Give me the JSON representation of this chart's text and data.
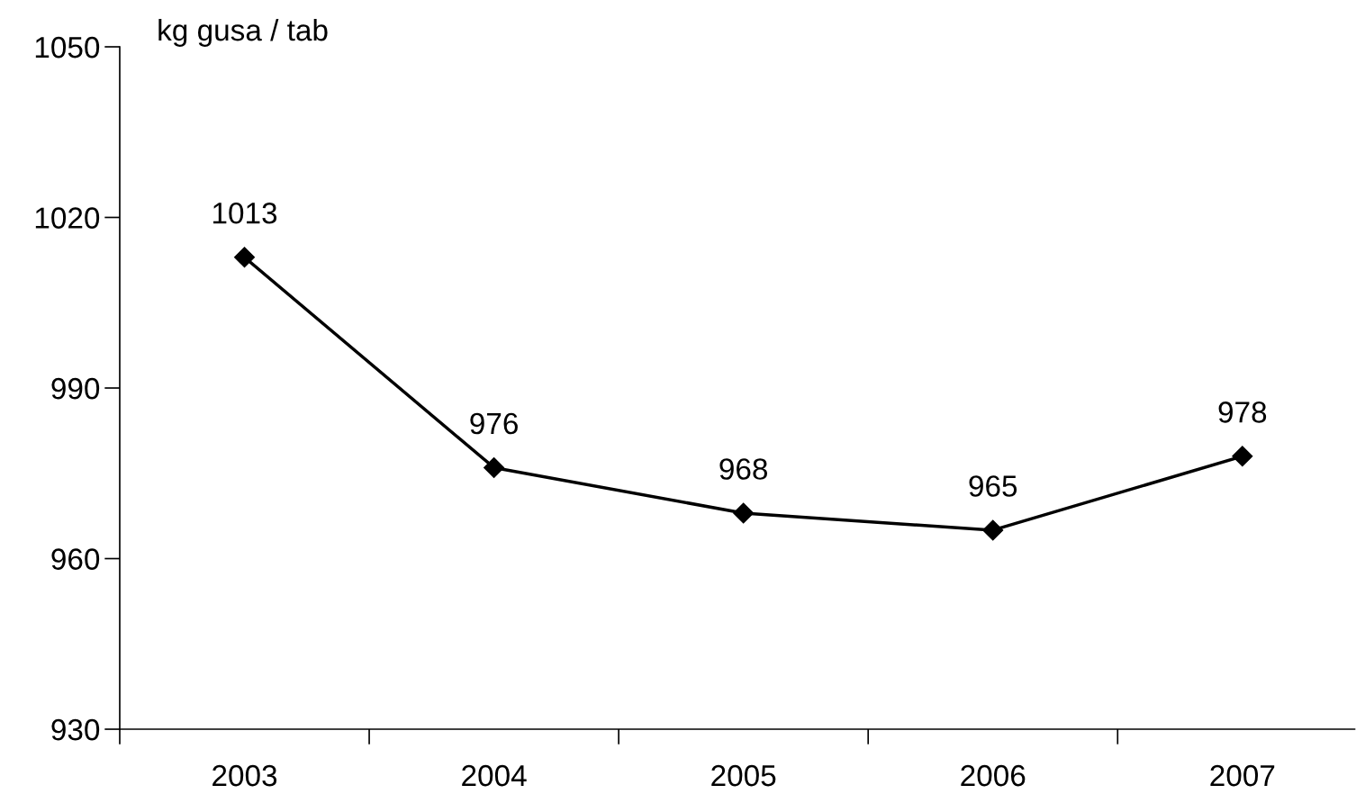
{
  "chart_data": {
    "type": "line",
    "ylabel": "kg gusa / tab",
    "categories": [
      "2003",
      "2004",
      "2005",
      "2006",
      "2007"
    ],
    "series": [
      {
        "color": "#000000",
        "values": [
          1013,
          976,
          968,
          965,
          978
        ]
      }
    ],
    "ylim": [
      930,
      1050
    ],
    "yticks": [
      930,
      960,
      990,
      1020,
      1050
    ],
    "data_labels": true,
    "marker": "diamond",
    "line_style": "solid",
    "grid": false,
    "legend": false
  }
}
